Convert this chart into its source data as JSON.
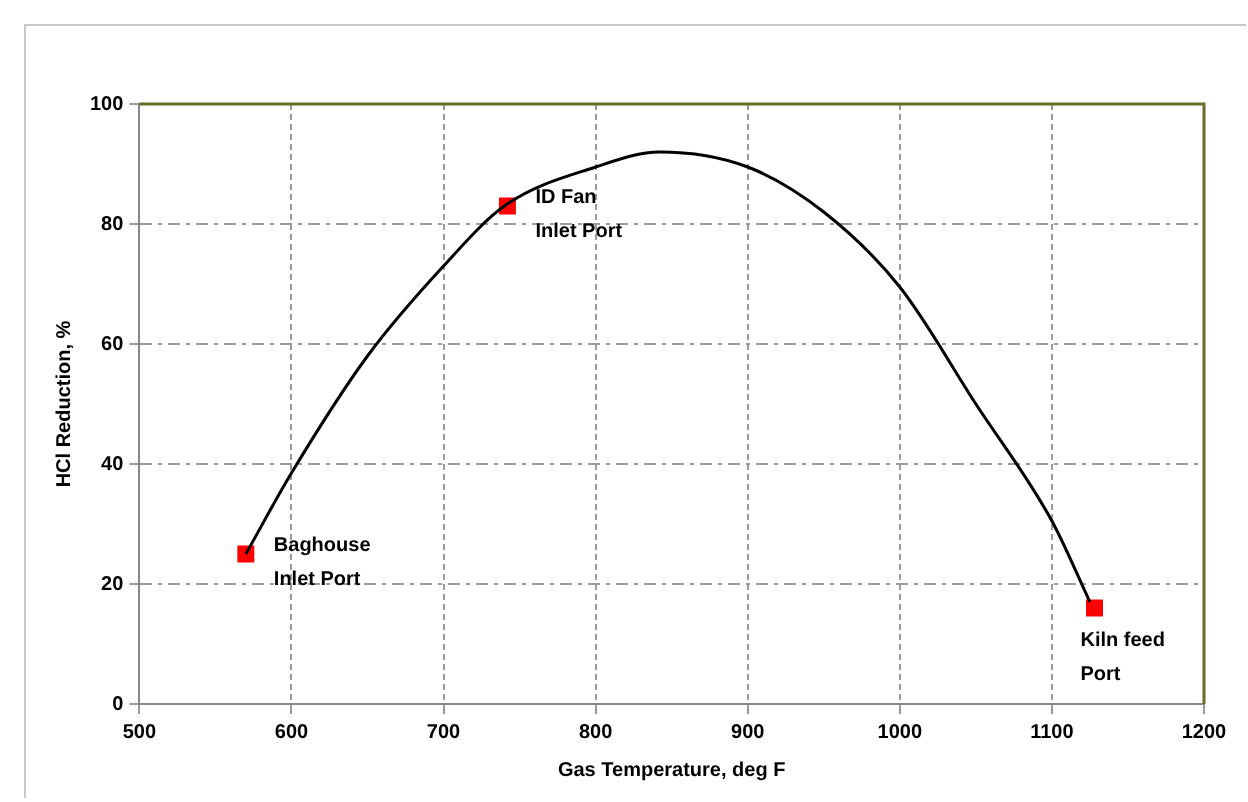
{
  "chart_data": {
    "type": "scatter",
    "xlabel": "Gas Temperature, deg F",
    "ylabel": "HCl Reduction, %",
    "xlim": [
      500,
      1200
    ],
    "xticks": [
      500,
      600,
      700,
      800,
      900,
      1000,
      1100,
      1200
    ],
    "ylim": [
      0,
      100
    ],
    "yticks": [
      0,
      20,
      40,
      60,
      80,
      100
    ],
    "grid": true,
    "legend": false,
    "marker": "square",
    "series": [
      {
        "type": "line",
        "color": "#000000",
        "marker": "none",
        "x": [
          570,
          600,
          650,
          700,
          740,
          800,
          842,
          900,
          950,
          1000,
          1050,
          1100,
          1125
        ],
        "values": [
          25,
          38.5,
          58,
          73,
          83,
          89.5,
          92,
          89.5,
          82,
          69.5,
          50,
          30.5,
          17
        ]
      },
      {
        "type": "scatter",
        "color": "#ff0000",
        "x": [
          570,
          742,
          1128
        ],
        "values": [
          25,
          83,
          16
        ]
      }
    ],
    "annotations": [
      {
        "text": "Baghouse\nInlet Port",
        "x": 570,
        "y": 25
      },
      {
        "text": "ID Fan\nInlet Port",
        "x": 742,
        "y": 83
      },
      {
        "text": "Kiln feed\nPort",
        "x": 1128,
        "y": 16
      }
    ]
  }
}
